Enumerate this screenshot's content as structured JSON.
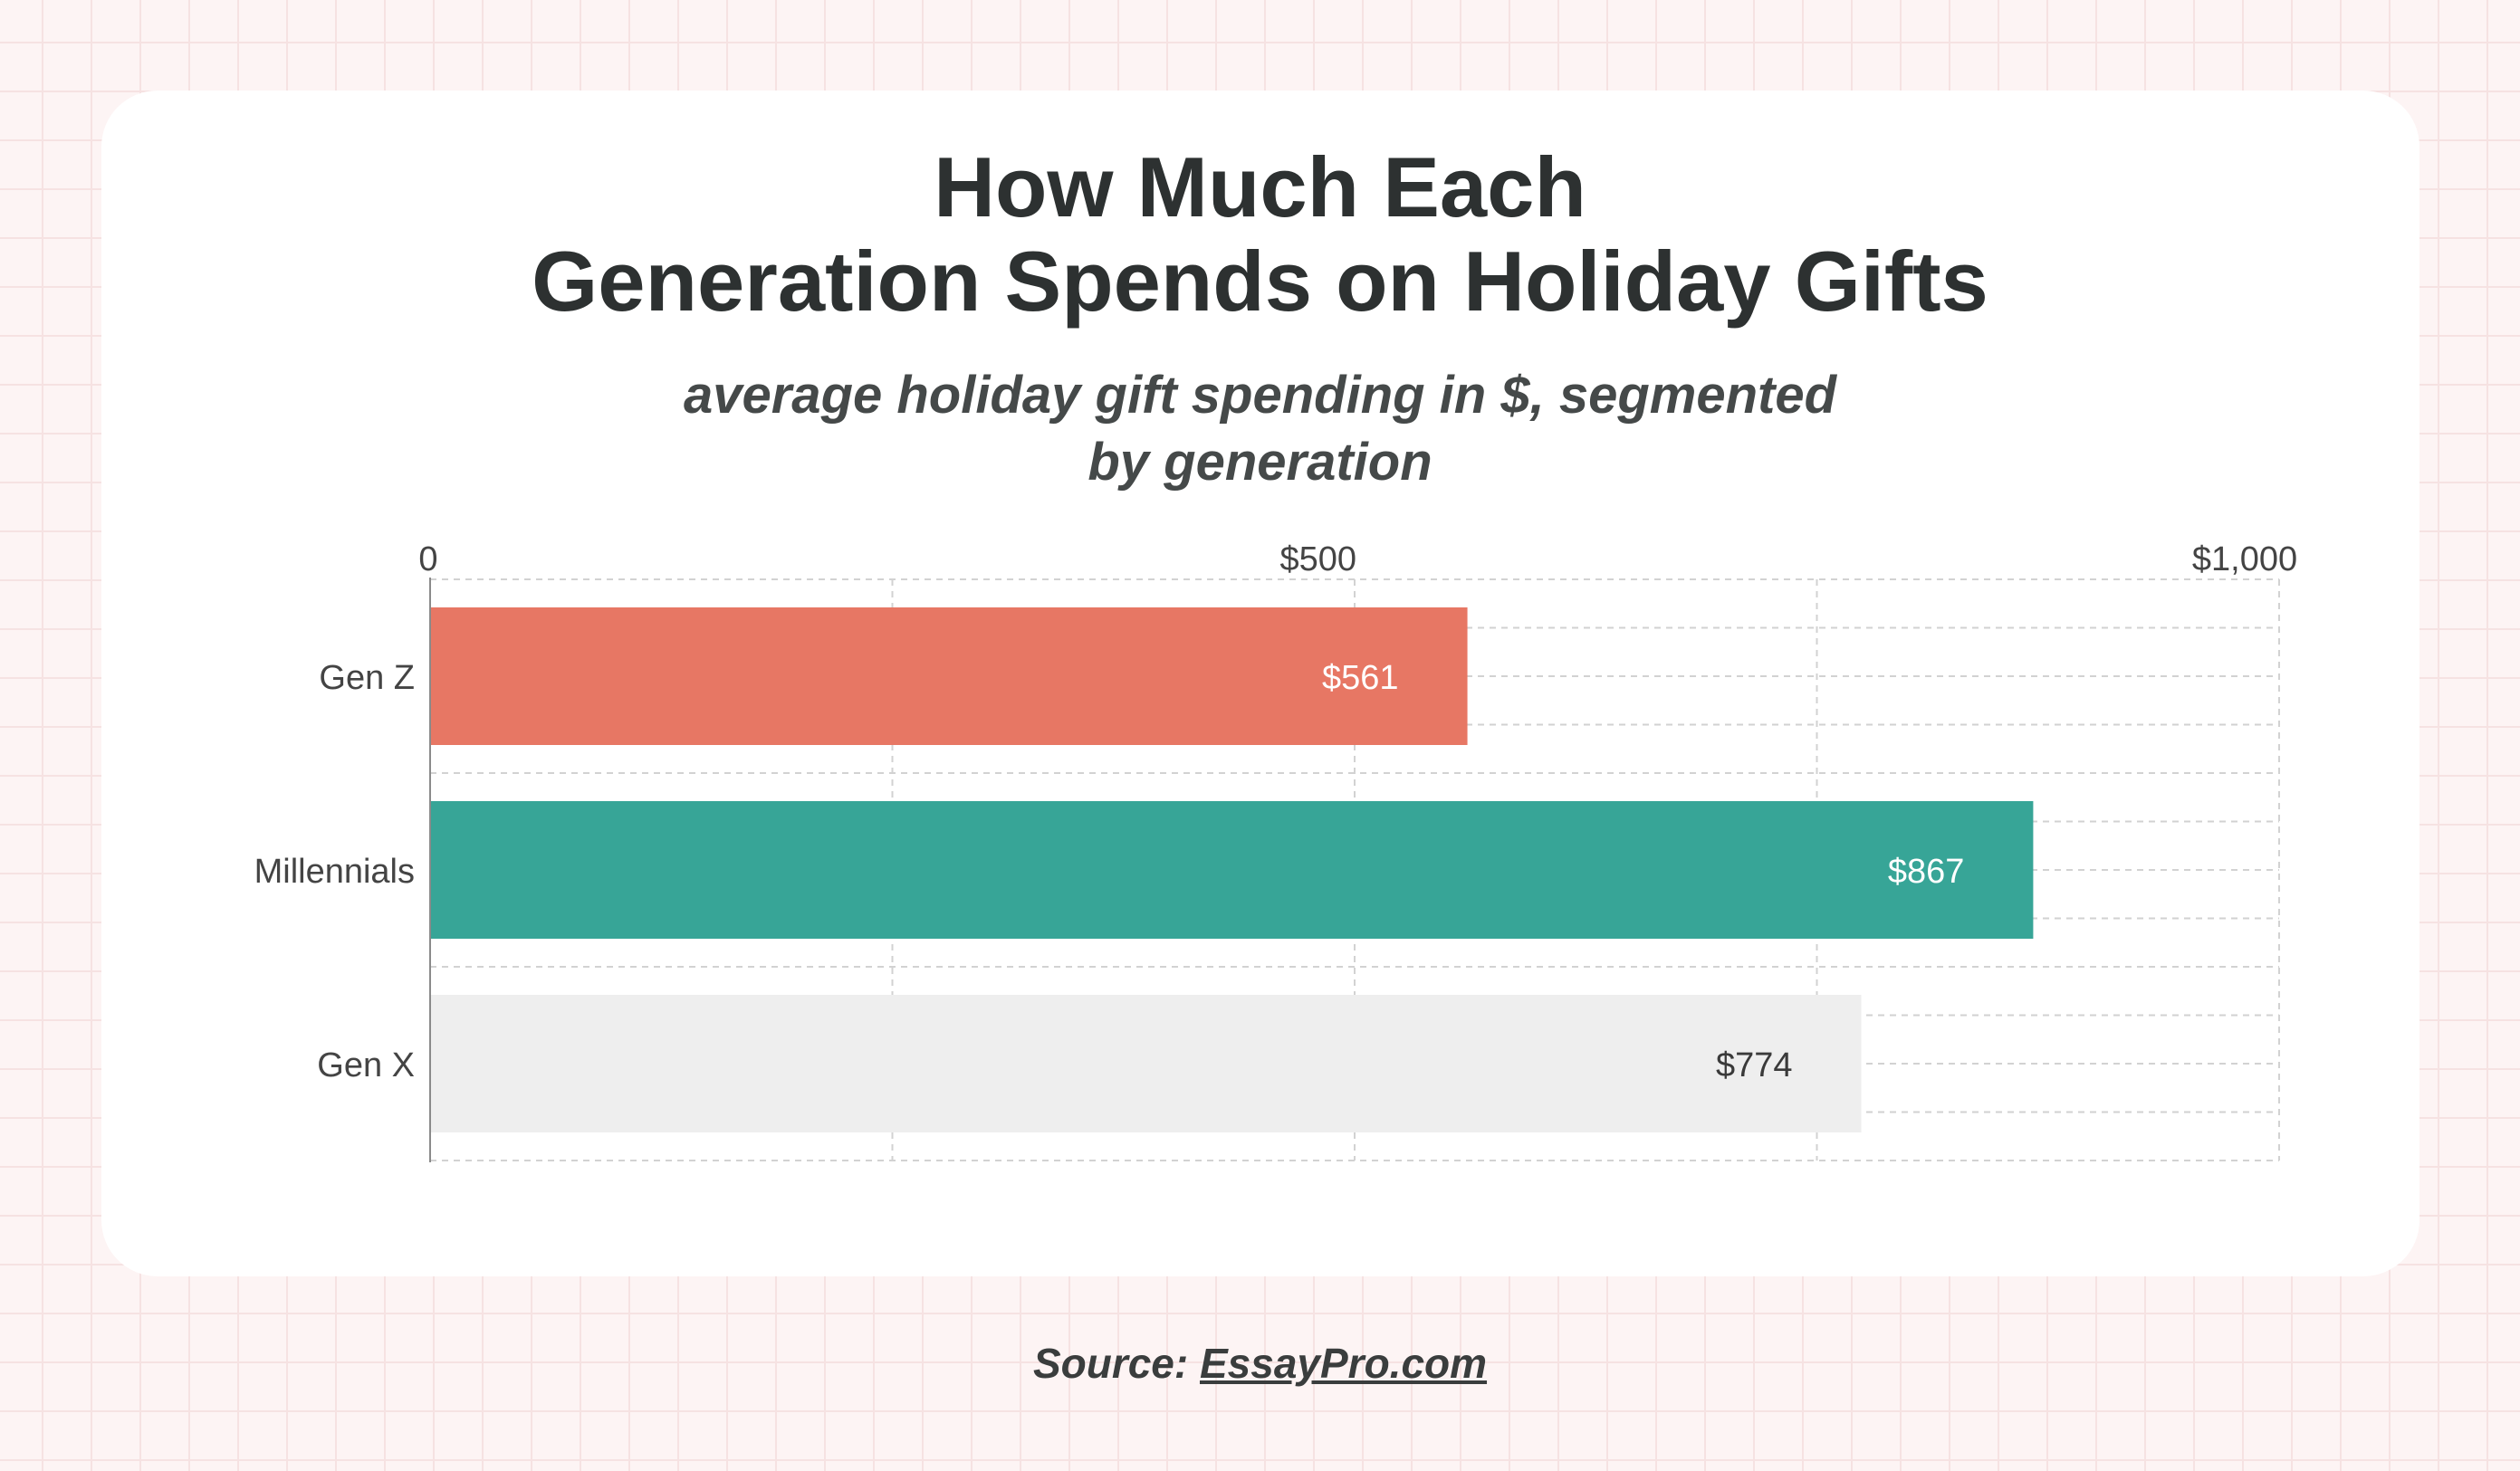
{
  "chart_data": {
    "type": "bar",
    "orientation": "horizontal",
    "title": [
      "How Much Each",
      "Generation Spends on Holiday Gifts"
    ],
    "subtitle": [
      "average holiday gift spending in $, segmented",
      "by generation"
    ],
    "categories": [
      "Gen Z",
      "Millennials",
      "Gen X"
    ],
    "values": [
      561,
      867,
      774
    ],
    "value_labels": [
      "$561",
      "$867",
      "$774"
    ],
    "colors": [
      "#e77764",
      "#37a597",
      "#eeeeee"
    ],
    "value_label_colors": [
      "#ffffff",
      "#ffffff",
      "#3a3a3a"
    ],
    "xlim": [
      0,
      1000
    ],
    "x_ticks": [
      {
        "value": 0,
        "label": "0"
      },
      {
        "value": 500,
        "label": "$500"
      },
      {
        "value": 1000,
        "label": "$1,000"
      }
    ],
    "grid": true
  },
  "source": {
    "prefix": "Source:",
    "link_text": "EssayPro.com"
  }
}
